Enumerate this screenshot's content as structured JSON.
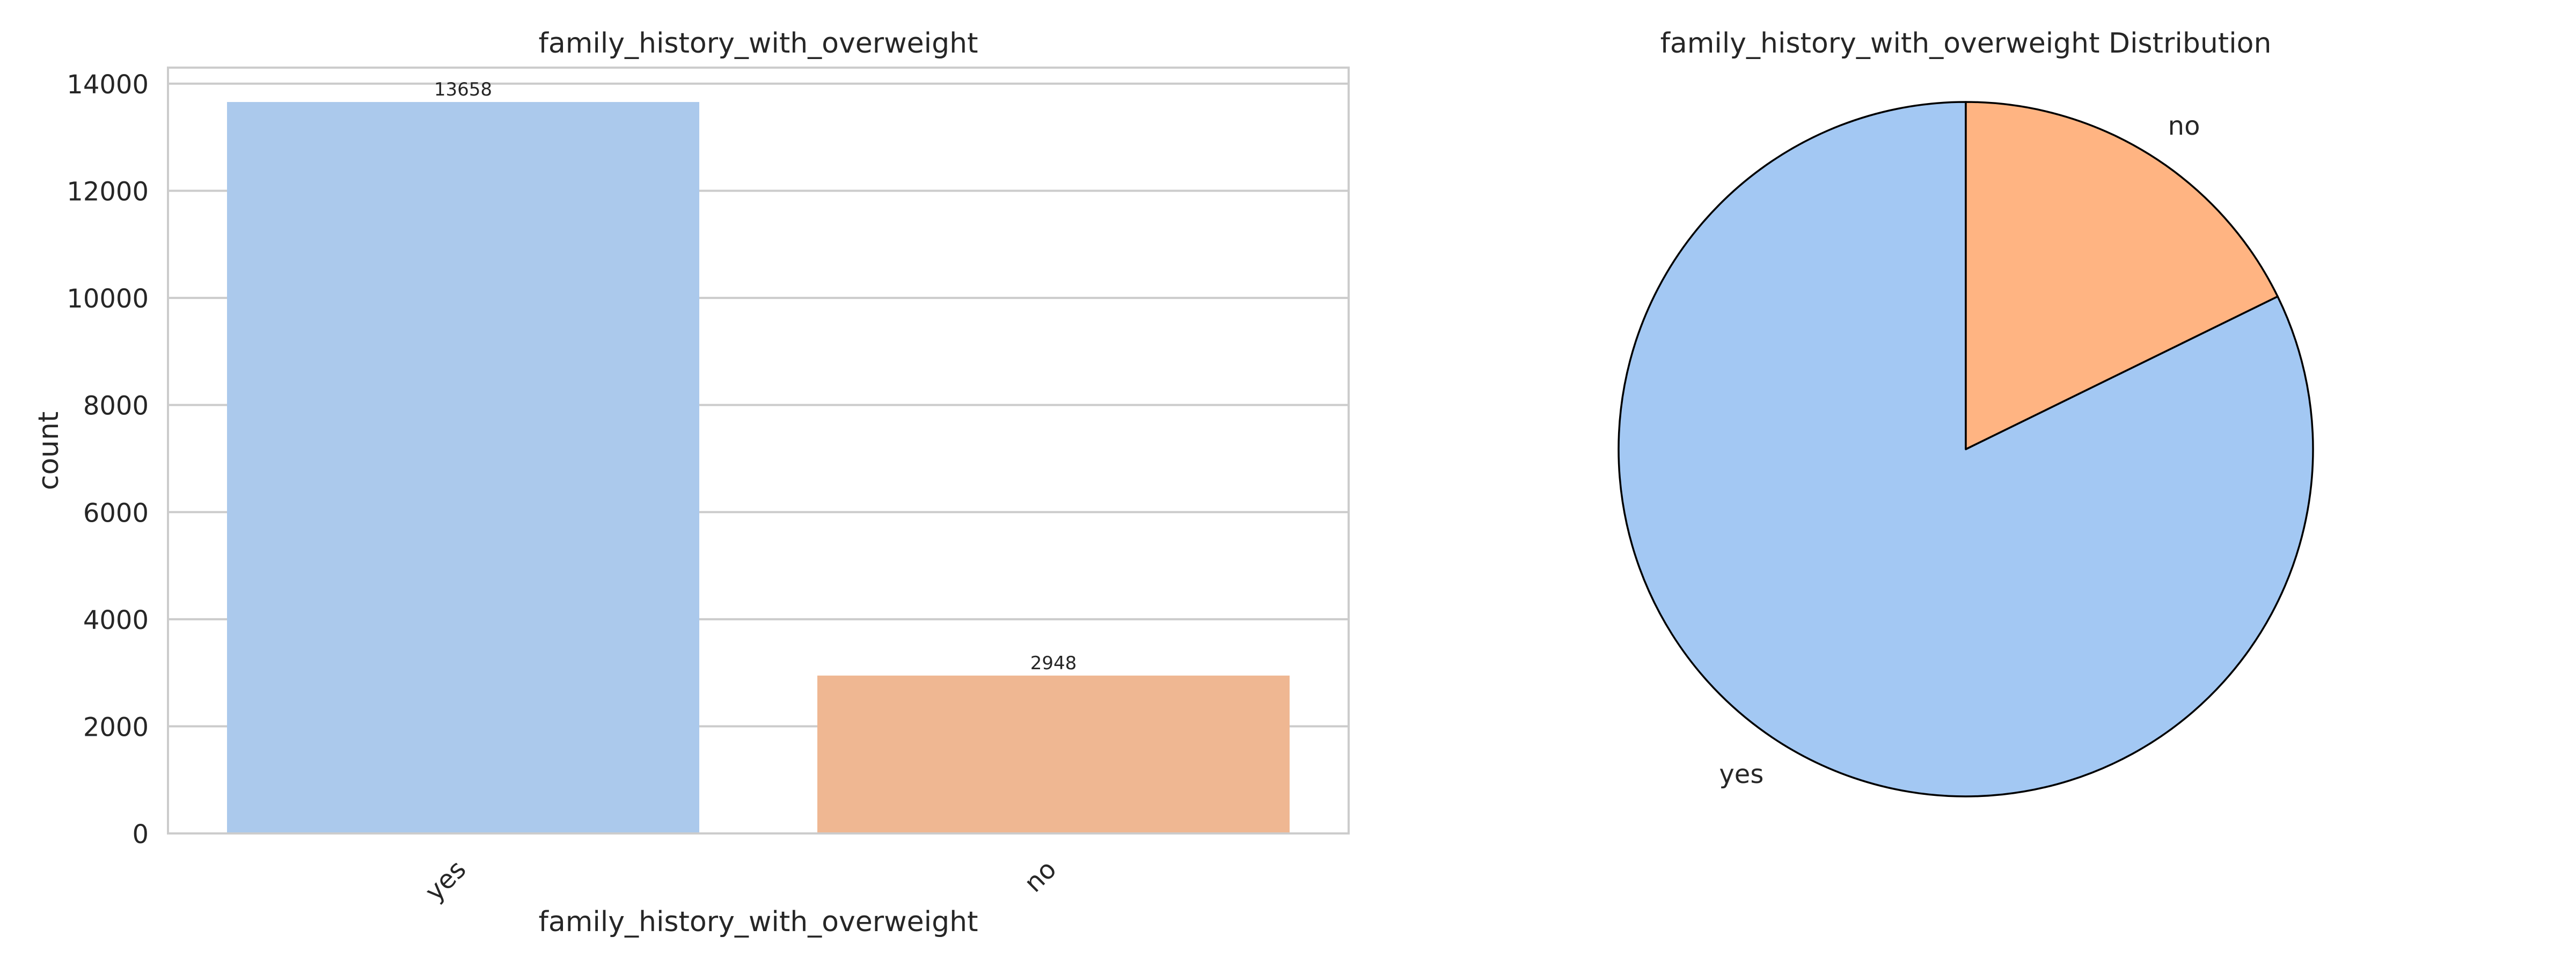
{
  "chart_data": [
    {
      "type": "bar",
      "title": "family_history_with_overweight",
      "xlabel": "family_history_with_overweight",
      "ylabel": "count",
      "categories": [
        "yes",
        "no"
      ],
      "values": [
        13658,
        2948
      ],
      "data_labels": [
        "13658",
        "2948"
      ],
      "colors": [
        "#abc9ec",
        "#efb792"
      ],
      "ylim": [
        0,
        14300
      ],
      "yticks": [
        0,
        2000,
        4000,
        6000,
        8000,
        10000,
        12000,
        14000
      ],
      "ytick_labels": [
        "0",
        "2000",
        "4000",
        "6000",
        "8000",
        "10000",
        "12000",
        "14000"
      ],
      "grid": true
    },
    {
      "type": "pie",
      "title": "family_history_with_overweight Distribution",
      "labels": [
        "yes",
        "no"
      ],
      "values": [
        13658,
        2948
      ],
      "colors": [
        "#a3c8f3",
        "#ffb482"
      ],
      "start_angle": 90,
      "direction": "counterclockwise"
    }
  ]
}
